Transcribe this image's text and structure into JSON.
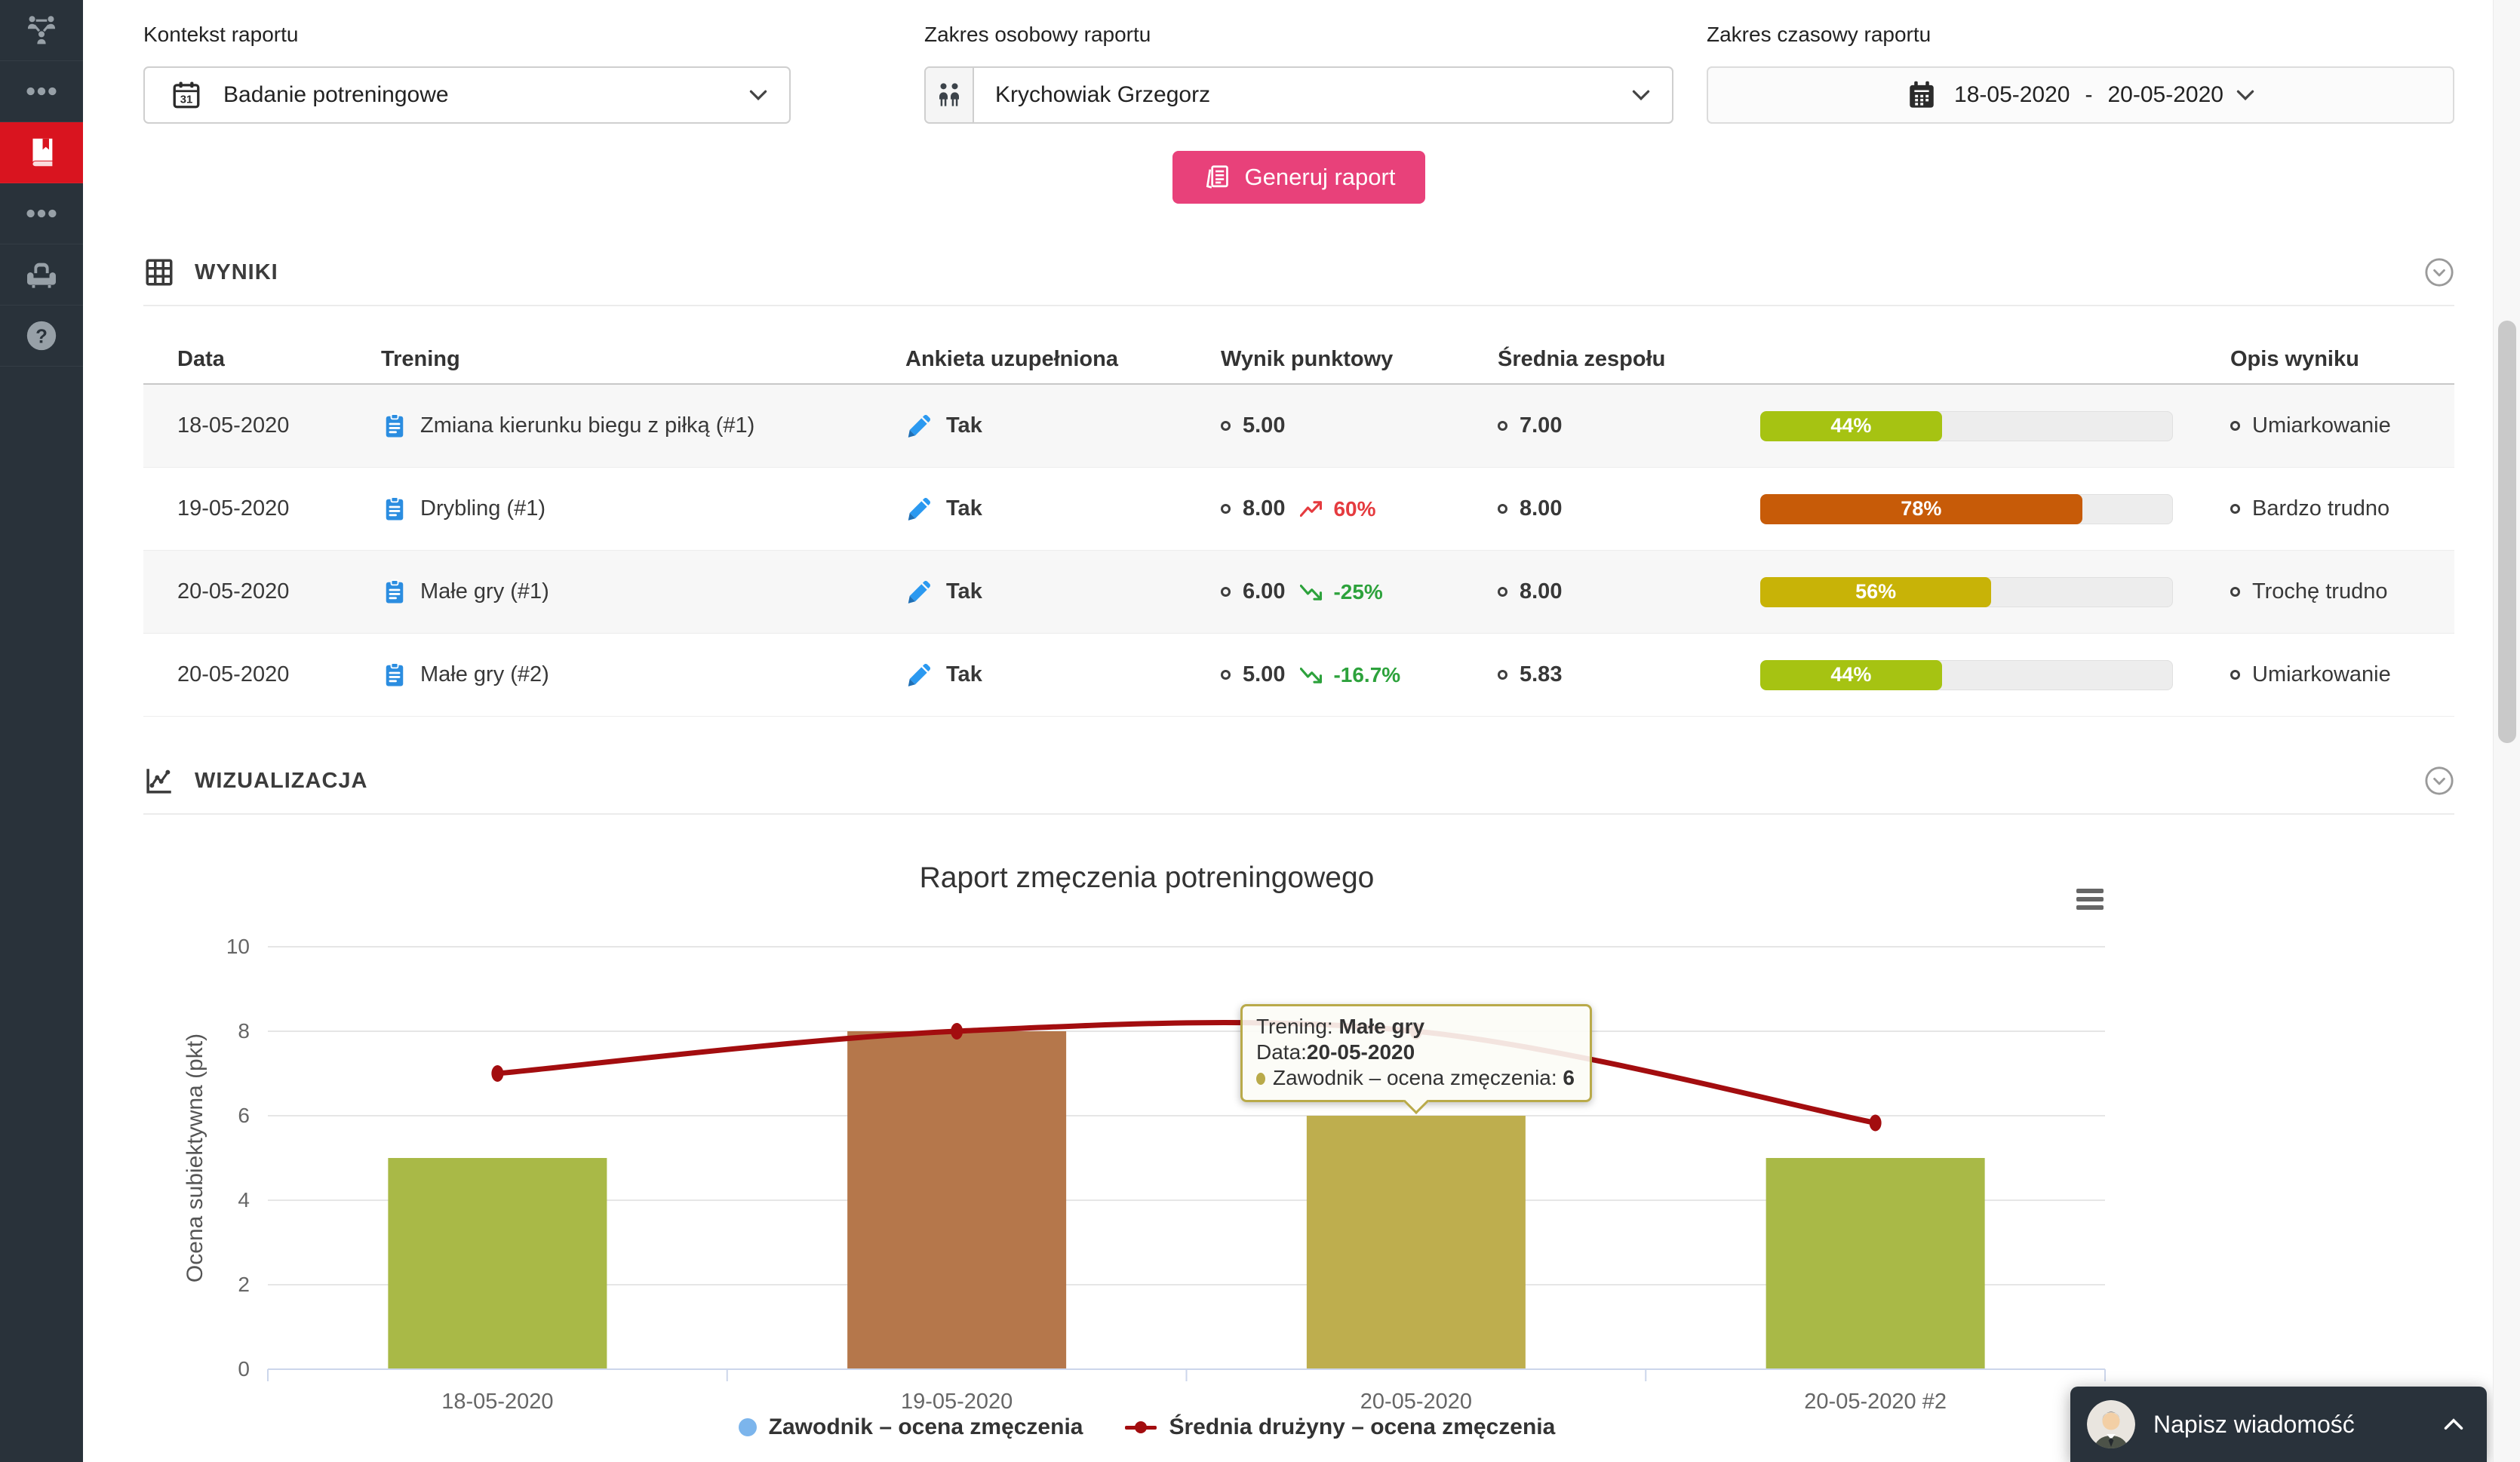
{
  "sidebar": {
    "items": [
      {
        "name": "team-structure",
        "icon": "network-icon",
        "active": false
      },
      {
        "name": "more-top",
        "icon": "ellipsis-icon",
        "active": false
      },
      {
        "name": "reports",
        "icon": "book-icon",
        "active": true
      },
      {
        "name": "more-bottom",
        "icon": "ellipsis-icon",
        "active": false
      },
      {
        "name": "lounge",
        "icon": "armchair-icon",
        "active": false
      },
      {
        "name": "help",
        "icon": "help-icon",
        "active": false
      }
    ],
    "active_color": "#d9141f"
  },
  "filters": {
    "context": {
      "label": "Kontekst raportu",
      "value": "Badanie potreningowe"
    },
    "personal": {
      "label": "Zakres osobowy raportu",
      "value": "Krychowiak Grzegorz"
    },
    "time": {
      "label": "Zakres czasowy raportu",
      "from": "18-05-2020",
      "separator": "-",
      "to": "20-05-2020"
    }
  },
  "actions": {
    "generate_label": "Generuj raport",
    "button_color": "#e8417a"
  },
  "results": {
    "title": "WYNIKI",
    "columns": [
      "Data",
      "Trening",
      "Ankieta uzupełniona",
      "Wynik punktowy",
      "Średnia zespołu",
      "",
      "Opis wyniku"
    ],
    "trend_colors": {
      "up": "#e53b3f",
      "down": "#2da23c"
    },
    "rows": [
      {
        "date": "18-05-2020",
        "training": "Zmiana kierunku biegu z piłką (#1)",
        "survey": "Tak",
        "score": "5.00",
        "trend": null,
        "team_avg": "7.00",
        "percent": 44,
        "percent_label": "44%",
        "bar_color": "#a6c312",
        "description": "Umiarkowanie"
      },
      {
        "date": "19-05-2020",
        "training": "Drybling (#1)",
        "survey": "Tak",
        "score": "8.00",
        "trend": {
          "dir": "up",
          "value": "60%"
        },
        "team_avg": "8.00",
        "percent": 78,
        "percent_label": "78%",
        "bar_color": "#c75b08",
        "description": "Bardzo trudno"
      },
      {
        "date": "20-05-2020",
        "training": "Małe gry (#1)",
        "survey": "Tak",
        "score": "6.00",
        "trend": {
          "dir": "down",
          "value": "-25%"
        },
        "team_avg": "8.00",
        "percent": 56,
        "percent_label": "56%",
        "bar_color": "#c8b307",
        "description": "Trochę trudno"
      },
      {
        "date": "20-05-2020",
        "training": "Małe gry (#2)",
        "survey": "Tak",
        "score": "5.00",
        "trend": {
          "dir": "down",
          "value": "-16.7%"
        },
        "team_avg": "5.83",
        "percent": 44,
        "percent_label": "44%",
        "bar_color": "#a6c312",
        "description": "Umiarkowanie"
      }
    ]
  },
  "visualization": {
    "title": "WIZUALIZACJA"
  },
  "chart_data": {
    "type": "bar",
    "title": "Raport zmęczenia potreningowego",
    "ylabel": "Ocena subiektywna (pkt)",
    "ylim": [
      0,
      10
    ],
    "yticks": [
      0,
      2,
      4,
      6,
      8,
      10
    ],
    "grid": true,
    "legend_position": "bottom",
    "categories": [
      "18-05-2020",
      "19-05-2020",
      "20-05-2020",
      "20-05-2020 #2"
    ],
    "series": [
      {
        "name": "Zawodnik – ocena zmęczenia",
        "type": "column",
        "values": [
          5,
          8,
          6,
          5
        ],
        "bar_colors": [
          "#a9b947",
          "#b5774b",
          "#beae4e",
          "#a9b947"
        ],
        "legend_color": "#7cb5ec"
      },
      {
        "name": "Średnia drużyny – ocena zmęczenia",
        "type": "spline",
        "values": [
          7,
          8,
          8,
          5.83
        ],
        "color": "#a30d0f"
      }
    ],
    "tooltip": {
      "category_index": 2,
      "training_label": "Trening: ",
      "training": "Małe gry",
      "date_label": "Data:",
      "date": "20-05-2020",
      "series_label": "Zawodnik – ocena zmęczenia: ",
      "value": "6",
      "accent_color": "#b9aa4a"
    }
  },
  "chat": {
    "label": "Napisz wiadomość"
  }
}
